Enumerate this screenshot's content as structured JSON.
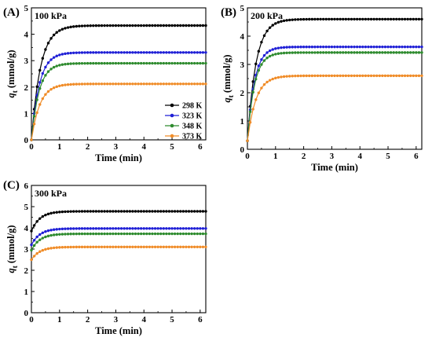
{
  "chart_data": [
    {
      "type": "line",
      "panel_label": "(A)",
      "inset_title": "100 kPa",
      "xlabel": "Time (min)",
      "ylabel": "qt (mmol/g)",
      "ylabel_symbol": "q",
      "ylabel_subscript": "t",
      "ylabel_unit": "(mmol/g)",
      "xlim": [
        0,
        6.2
      ],
      "ylim": [
        0,
        5
      ],
      "xticks": [
        "0",
        "1",
        "2",
        "3",
        "4",
        "5",
        "6"
      ],
      "yticks": [
        "0",
        "1",
        "2",
        "3",
        "4",
        "5"
      ],
      "legend_position": "bottom-right",
      "series": [
        {
          "name": "298 K",
          "color": "#000000",
          "qe": 4.33,
          "q0": 0.0,
          "tau": 0.32
        },
        {
          "name": "323 K",
          "color": "#1f1fd6",
          "qe": 3.31,
          "q0": 0.0,
          "tau": 0.28
        },
        {
          "name": "348 K",
          "color": "#2e8b2e",
          "qe": 2.9,
          "q0": 0.0,
          "tau": 0.27
        },
        {
          "name": "373 K",
          "color": "#f08c28",
          "qe": 2.12,
          "q0": 0.0,
          "tau": 0.3
        }
      ]
    },
    {
      "type": "line",
      "panel_label": "(B)",
      "inset_title": "200 kPa",
      "xlabel": "Time (min)",
      "ylabel": "qt (mmol/g)",
      "ylabel_symbol": "q",
      "ylabel_subscript": "t",
      "ylabel_unit": "(mmol/g)",
      "xlim": [
        0,
        6.2
      ],
      "ylim": [
        0,
        5
      ],
      "xticks": [
        "0",
        "1",
        "2",
        "3",
        "4",
        "5",
        "6"
      ],
      "yticks": [
        "0",
        "1",
        "2",
        "3",
        "4",
        "5"
      ],
      "series": [
        {
          "name": "298 K",
          "color": "#000000",
          "qe": 4.6,
          "q0": 0.3,
          "tau": 0.3
        },
        {
          "name": "323 K",
          "color": "#1f1fd6",
          "qe": 3.62,
          "q0": 0.3,
          "tau": 0.25
        },
        {
          "name": "348 K",
          "color": "#2e8b2e",
          "qe": 3.42,
          "q0": 0.3,
          "tau": 0.25
        },
        {
          "name": "373 K",
          "color": "#f08c28",
          "qe": 2.6,
          "q0": 0.3,
          "tau": 0.3
        }
      ]
    },
    {
      "type": "line",
      "panel_label": "(C)",
      "inset_title": "300 kPa",
      "xlabel": "Time (min)",
      "ylabel": "qt (mmol/g)",
      "ylabel_symbol": "q",
      "ylabel_subscript": "t",
      "ylabel_unit": "(mmol/g)",
      "xlim": [
        0,
        6.2
      ],
      "ylim": [
        0,
        6
      ],
      "xticks": [
        "0",
        "1",
        "2",
        "3",
        "4",
        "5",
        "6"
      ],
      "yticks": [
        "0",
        "1",
        "2",
        "3",
        "4",
        "5",
        "6"
      ],
      "series": [
        {
          "name": "298 K",
          "color": "#000000",
          "qe": 4.78,
          "q0": 3.85,
          "tau": 0.3
        },
        {
          "name": "323 K",
          "color": "#1f1fd6",
          "qe": 3.97,
          "q0": 3.2,
          "tau": 0.3
        },
        {
          "name": "348 K",
          "color": "#2e8b2e",
          "qe": 3.72,
          "q0": 2.95,
          "tau": 0.3
        },
        {
          "name": "373 K",
          "color": "#f08c28",
          "qe": 3.1,
          "q0": 2.5,
          "tau": 0.3
        }
      ]
    }
  ]
}
